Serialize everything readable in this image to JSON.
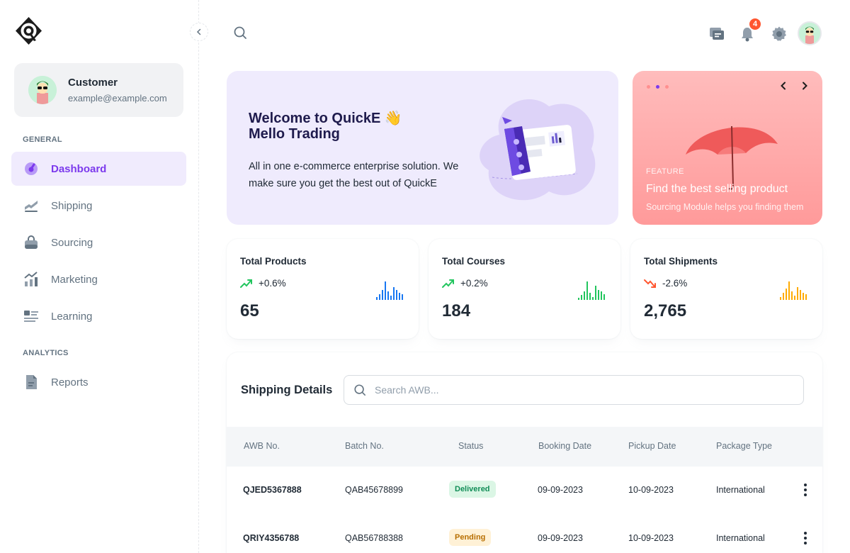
{
  "account": {
    "name": "Customer",
    "email": "example@example.com"
  },
  "sidebar": {
    "general_label": "GENERAL",
    "analytics_label": "ANALYTICS",
    "items": [
      {
        "label": "Dashboard",
        "icon": "dashboard-icon",
        "active": true
      },
      {
        "label": "Shipping",
        "icon": "shipping-icon"
      },
      {
        "label": "Sourcing",
        "icon": "bag-icon"
      },
      {
        "label": "Marketing",
        "icon": "chart-icon"
      },
      {
        "label": "Learning",
        "icon": "list-icon"
      },
      {
        "label": "Reports",
        "icon": "document-icon"
      }
    ]
  },
  "header": {
    "notification_count": "4"
  },
  "welcome": {
    "title_line1": "Welcome to QuickE 👋",
    "title_line2": "Mello Trading",
    "description": "All in one e-commerce enterprise solution. We make sure you get the best out of QuickE"
  },
  "feature": {
    "label": "FEATURE",
    "title": "Find the best selling product",
    "subtitle": "Sourcing Module helps you finding them",
    "accent_color": "#ff9a9a"
  },
  "stats": [
    {
      "title": "Total Products",
      "trend": "+0.6%",
      "value": "65",
      "direction": "up",
      "color": "#1877f2",
      "trend_color": "#22c55e"
    },
    {
      "title": "Total Courses",
      "trend": "+0.2%",
      "value": "184",
      "direction": "up",
      "color": "#22c55e",
      "trend_color": "#22c55e"
    },
    {
      "title": "Total Shipments",
      "trend": "-2.6%",
      "value": "2,765",
      "direction": "down",
      "color": "#ffab00",
      "trend_color": "#ff5630"
    }
  ],
  "shipping": {
    "title": "Shipping Details",
    "search_placeholder": "Search AWB...",
    "columns": [
      "AWB No.",
      "Batch No.",
      "Status",
      "Booking Date",
      "Pickup Date",
      "Package Type"
    ],
    "rows": [
      {
        "awb": "QJED5367888",
        "batch": "QAB45678899",
        "status": "Delivered",
        "booking": "09-09-2023",
        "pickup": "10-09-2023",
        "package": "International"
      },
      {
        "awb": "QRIY4356788",
        "batch": "QAB56788388",
        "status": "Pending",
        "booking": "09-09-2023",
        "pickup": "10-09-2023",
        "package": "International"
      }
    ]
  }
}
